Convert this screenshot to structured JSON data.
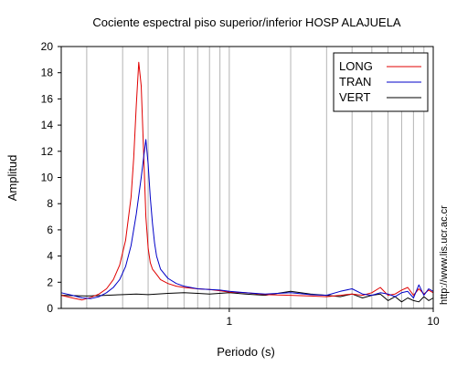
{
  "chart_data": {
    "type": "line",
    "title": "Cociente espectral piso superior/inferior  HOSP ALAJUELA",
    "xlabel": "Periodo (s)",
    "ylabel": "Amplitud",
    "xscale": "log",
    "xlim": [
      0.15,
      10
    ],
    "ylim": [
      0,
      20
    ],
    "x_ticks": [
      1,
      10
    ],
    "x_tick_labels": [
      "1",
      "10"
    ],
    "y_ticks": [
      0,
      2,
      4,
      6,
      8,
      10,
      12,
      14,
      16,
      18,
      20
    ],
    "y_tick_labels": [
      "0",
      "2",
      "4",
      "6",
      "8",
      "10",
      "12",
      "14",
      "16",
      "18",
      "20"
    ],
    "grid": "vertical (log decades)",
    "legend_position": "top-right",
    "side_text": "http://www.lis.ucr.ac.cr",
    "series": [
      {
        "name": "LONG",
        "color": "#e00000",
        "x": [
          0.15,
          0.17,
          0.19,
          0.21,
          0.23,
          0.25,
          0.27,
          0.29,
          0.31,
          0.33,
          0.34,
          0.35,
          0.36,
          0.37,
          0.38,
          0.39,
          0.4,
          0.41,
          0.42,
          0.44,
          0.46,
          0.5,
          0.55,
          0.6,
          0.7,
          0.8,
          0.9,
          1.0,
          1.2,
          1.5,
          2.0,
          2.5,
          3.0,
          3.5,
          4.0,
          4.5,
          5.0,
          5.5,
          6.0,
          6.5,
          7.0,
          7.5,
          8.0,
          8.5,
          9.0,
          9.5,
          10.0
        ],
        "values": [
          1.0,
          0.8,
          0.65,
          0.85,
          1.1,
          1.5,
          2.2,
          3.3,
          5.2,
          8.5,
          11.5,
          15.5,
          18.8,
          17.0,
          12.0,
          7.0,
          4.6,
          3.5,
          3.0,
          2.6,
          2.2,
          1.9,
          1.7,
          1.6,
          1.5,
          1.45,
          1.35,
          1.25,
          1.2,
          1.05,
          1.0,
          0.95,
          0.9,
          1.0,
          1.1,
          1.0,
          1.2,
          1.6,
          1.0,
          1.1,
          1.4,
          1.6,
          1.0,
          1.5,
          1.1,
          1.4,
          1.2
        ]
      },
      {
        "name": "TRAN",
        "color": "#0000c8",
        "x": [
          0.15,
          0.17,
          0.19,
          0.21,
          0.23,
          0.25,
          0.27,
          0.29,
          0.31,
          0.33,
          0.35,
          0.37,
          0.38,
          0.39,
          0.4,
          0.41,
          0.42,
          0.43,
          0.44,
          0.46,
          0.5,
          0.55,
          0.6,
          0.7,
          0.8,
          0.9,
          1.0,
          1.2,
          1.5,
          2.0,
          2.5,
          3.0,
          3.5,
          4.0,
          4.5,
          5.0,
          5.5,
          6.0,
          6.5,
          7.0,
          7.5,
          8.0,
          8.5,
          9.0,
          9.5,
          10.0
        ],
        "values": [
          1.2,
          1.0,
          0.8,
          0.75,
          0.9,
          1.2,
          1.6,
          2.2,
          3.2,
          4.8,
          7.2,
          10.0,
          11.5,
          12.9,
          11.0,
          8.5,
          6.5,
          5.0,
          4.0,
          3.0,
          2.3,
          1.9,
          1.7,
          1.5,
          1.45,
          1.4,
          1.3,
          1.2,
          1.1,
          1.2,
          1.05,
          1.0,
          1.3,
          1.5,
          1.1,
          1.0,
          1.2,
          1.1,
          0.9,
          1.2,
          1.3,
          0.8,
          1.8,
          1.0,
          1.5,
          1.3
        ]
      },
      {
        "name": "VERT",
        "color": "#000000",
        "x": [
          0.15,
          0.2,
          0.25,
          0.3,
          0.35,
          0.4,
          0.5,
          0.6,
          0.7,
          0.8,
          1.0,
          1.2,
          1.5,
          2.0,
          2.5,
          3.0,
          3.5,
          4.0,
          4.5,
          5.0,
          5.5,
          6.0,
          6.5,
          7.0,
          7.5,
          8.0,
          8.5,
          9.0,
          9.5,
          10.0
        ],
        "values": [
          1.0,
          0.95,
          1.0,
          1.05,
          1.1,
          1.05,
          1.15,
          1.2,
          1.15,
          1.1,
          1.2,
          1.1,
          1.0,
          1.3,
          1.1,
          1.0,
          0.9,
          1.1,
          0.8,
          1.0,
          1.1,
          0.6,
          0.9,
          0.5,
          0.8,
          0.6,
          0.5,
          0.9,
          0.6,
          0.8
        ]
      }
    ]
  }
}
